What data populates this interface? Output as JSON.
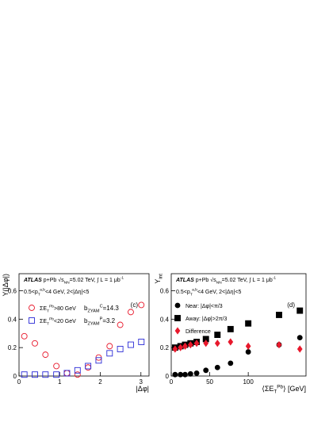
{
  "chart_data": [
    {
      "type": "scatter",
      "panel": "(c)",
      "header": [
        [
          {
            "t": "ATLAS",
            "s": "bi"
          },
          {
            "t": " p+Pb  √s"
          },
          {
            "t": "NN",
            "s": "sub"
          },
          {
            "t": "=5.02 TeV, ∫ L = 1 μb"
          },
          {
            "t": "-1",
            "s": "sup"
          }
        ],
        [
          {
            "t": "0.5<p"
          },
          {
            "t": "T",
            "s": "sub"
          },
          {
            "t": "a,b",
            "s": "sup"
          },
          {
            "t": "<4 GeV,  2<|Δη|<5"
          }
        ]
      ],
      "ylabel": [
        {
          "t": "Y(|Δφ|)"
        }
      ],
      "xlabel": [
        {
          "t": "|Δφ|"
        }
      ],
      "xlim": [
        0,
        3.2
      ],
      "ylim": [
        0,
        0.72
      ],
      "xticks": [
        0,
        1,
        2,
        3
      ],
      "yticks": [
        0,
        0.2,
        0.4,
        0.6
      ],
      "series": [
        {
          "name": [
            {
              "t": "ΣE"
            },
            {
              "t": "T",
              "s": "sub"
            },
            {
              "t": "Pb",
              "s": "sup"
            },
            {
              "t": ">80 GeV"
            }
          ],
          "note": [
            {
              "t": "b"
            },
            {
              "t": "ZYAM",
              "s": "sub"
            },
            {
              "t": "C",
              "s": "sup"
            },
            {
              "t": "=14.3"
            }
          ],
          "color": "#e8192c",
          "marker": "open-circle",
          "x": [
            0.13,
            0.39,
            0.65,
            0.92,
            1.18,
            1.44,
            1.7,
            1.96,
            2.23,
            2.49,
            2.75,
            3.01
          ],
          "values": [
            0.28,
            0.23,
            0.15,
            0.07,
            0.02,
            0.01,
            0.06,
            0.13,
            0.21,
            0.36,
            0.45,
            0.5
          ]
        },
        {
          "name": [
            {
              "t": "ΣE"
            },
            {
              "t": "T",
              "s": "sub"
            },
            {
              "t": "Pb",
              "s": "sup"
            },
            {
              "t": "<20 GeV"
            }
          ],
          "note": [
            {
              "t": "b"
            },
            {
              "t": "ZYAM",
              "s": "sub"
            },
            {
              "t": "P",
              "s": "sup"
            },
            {
              "t": "=3.2"
            }
          ],
          "color": "#2b2bd6",
          "marker": "open-square",
          "x": [
            0.13,
            0.39,
            0.65,
            0.92,
            1.18,
            1.44,
            1.7,
            1.96,
            2.23,
            2.49,
            2.75,
            3.01
          ],
          "values": [
            0.01,
            0.01,
            0.01,
            0.01,
            0.02,
            0.04,
            0.07,
            0.11,
            0.16,
            0.19,
            0.22,
            0.24
          ]
        }
      ]
    },
    {
      "type": "scatter",
      "panel": "(d)",
      "header": [
        [
          {
            "t": "ATLAS",
            "s": "bi"
          },
          {
            "t": " p+Pb  √s"
          },
          {
            "t": "NN",
            "s": "sub"
          },
          {
            "t": "=5.02 TeV, ∫ L = 1 μb"
          },
          {
            "t": "-1",
            "s": "sup"
          }
        ],
        [
          {
            "t": "0.5<p"
          },
          {
            "t": "T",
            "s": "sub"
          },
          {
            "t": "a,b",
            "s": "sup"
          },
          {
            "t": "<4 GeV,  2<|Δη|<5"
          }
        ]
      ],
      "ylabel": [
        {
          "t": "Y"
        },
        {
          "t": "int",
          "s": "sub"
        }
      ],
      "xlabel": [
        {
          "t": "⟨ΣE"
        },
        {
          "t": "T",
          "s": "sub"
        },
        {
          "t": "Pb",
          "s": "sup"
        },
        {
          "t": "⟩ [GeV]"
        }
      ],
      "xlim": [
        0,
        175
      ],
      "ylim": [
        0,
        0.72
      ],
      "xticks": [
        0,
        50,
        100
      ],
      "yticks": [
        0,
        0.2,
        0.4,
        0.6
      ],
      "series": [
        {
          "name": [
            {
              "t": "Near: |Δφ|<π/3"
            }
          ],
          "color": "#000000",
          "marker": "circle",
          "x": [
            5,
            12,
            18,
            25,
            33,
            45,
            60,
            77,
            100,
            140,
            167
          ],
          "values": [
            0.01,
            0.01,
            0.01,
            0.015,
            0.02,
            0.04,
            0.06,
            0.09,
            0.17,
            0.22,
            0.27
          ]
        },
        {
          "name": [
            {
              "t": "Away: |Δφ|>2π/3"
            }
          ],
          "color": "#000000",
          "marker": "square",
          "x": [
            5,
            12,
            18,
            25,
            33,
            45,
            60,
            77,
            100,
            140,
            167
          ],
          "values": [
            0.2,
            0.21,
            0.22,
            0.23,
            0.24,
            0.26,
            0.29,
            0.33,
            0.37,
            0.43,
            0.46
          ]
        },
        {
          "name": [
            {
              "t": "Difference"
            }
          ],
          "color": "#e8192c",
          "marker": "diamond",
          "x": [
            5,
            12,
            18,
            25,
            33,
            45,
            60,
            77,
            100,
            140,
            167
          ],
          "values": [
            0.19,
            0.2,
            0.21,
            0.22,
            0.23,
            0.23,
            0.23,
            0.24,
            0.21,
            0.22,
            0.19
          ]
        }
      ]
    }
  ]
}
